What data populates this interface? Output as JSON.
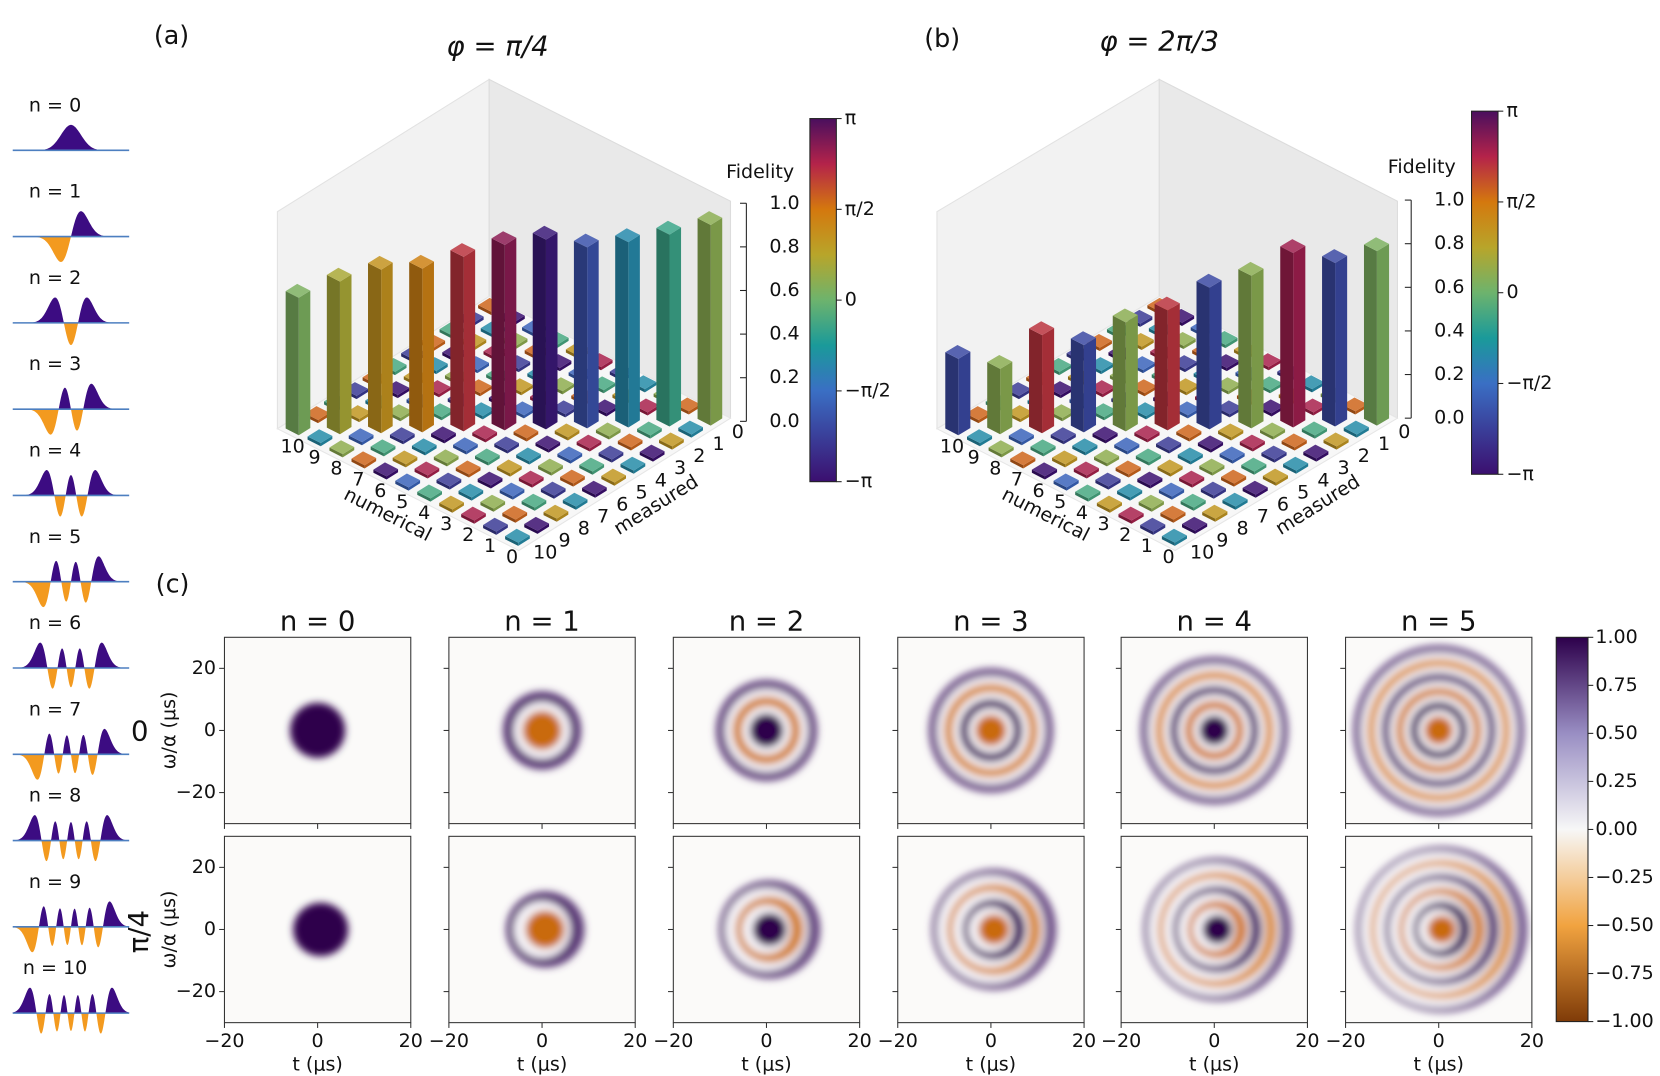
{
  "left_column": {
    "labels": [
      "n = 0",
      "n = 1",
      "n = 2",
      "n = 3",
      "n = 4",
      "n = 5",
      "n = 6",
      "n = 7",
      "n = 8",
      "n = 9",
      "n = 10"
    ]
  },
  "panel_a": {
    "label": "(a)",
    "title": "φ = π/4",
    "zlabel": "Fidelity",
    "xlabel": "numerical",
    "ylabel": "measured",
    "numerical_ticks": [
      0,
      1,
      2,
      3,
      4,
      5,
      6,
      7,
      8,
      9,
      10
    ],
    "measured_ticks": [
      0,
      1,
      2,
      3,
      4,
      5,
      6,
      7,
      8,
      9,
      10
    ],
    "zlim": [
      0,
      1
    ],
    "zticks": [
      {
        "value": 0,
        "label": "0.0"
      },
      0.2,
      0.4,
      0.6,
      0.8,
      {
        "value": 1,
        "label": "1.0"
      }
    ],
    "fidelity": [
      0.92,
      0.88,
      0.85,
      0.83,
      0.87,
      0.85,
      0.8,
      0.75,
      0.75,
      0.7,
      0.63
    ],
    "phase": [
      0.1,
      -0.15,
      -0.35,
      -0.65,
      -0.95,
      0.85,
      0.7,
      0.45,
      0.35,
      0.2,
      0.05
    ],
    "colorbar_lim": [
      -1,
      1
    ],
    "colorbar_ticks": [
      {
        "value": 1,
        "label": "π"
      },
      {
        "value": 0.5,
        "label": "π/2"
      },
      0,
      {
        "value": -0.5,
        "label": "−π/2"
      },
      {
        "value": -1,
        "label": "−π"
      }
    ]
  },
  "panel_b": {
    "label": "(b)",
    "title": "φ = 2π/3",
    "zlabel": "Fidelity",
    "xlabel": "numerical",
    "ylabel": "measured",
    "numerical_ticks": [
      0,
      1,
      2,
      3,
      4,
      5,
      6,
      7,
      8,
      9,
      10
    ],
    "measured_ticks": [
      0,
      1,
      2,
      3,
      4,
      5,
      6,
      7,
      8,
      9,
      10
    ],
    "zlim": [
      0,
      1
    ],
    "zticks": [
      {
        "value": 0,
        "label": "0.0"
      },
      0.2,
      0.4,
      0.6,
      0.8,
      {
        "value": 1,
        "label": "1.0"
      }
    ],
    "fidelity": [
      0.8,
      0.75,
      0.8,
      0.7,
      0.65,
      0.55,
      0.5,
      0.4,
      0.45,
      0.3,
      0.35
    ],
    "phase": [
      0.05,
      -0.7,
      0.8,
      0.1,
      -0.7,
      0.7,
      0.1,
      -0.7,
      0.7,
      0.1,
      -0.7
    ],
    "colorbar_lim": [
      -1,
      1
    ],
    "colorbar_ticks": [
      {
        "value": 1,
        "label": "π"
      },
      {
        "value": 0.5,
        "label": "π/2"
      },
      0,
      {
        "value": -0.5,
        "label": "−π/2"
      },
      {
        "value": -1,
        "label": "−π"
      }
    ]
  },
  "panel_c": {
    "label": "(c)",
    "columns": [
      "n = 0",
      "n = 1",
      "n = 2",
      "n = 3",
      "n = 4",
      "n = 5"
    ],
    "rows": [
      "0",
      "π/4"
    ],
    "xlabel": "t (μs)",
    "ylabel": "ω/α (μs)",
    "xlim": [
      -20,
      20
    ],
    "xticks": [
      {
        "value": -20,
        "label": "−20"
      },
      0,
      20
    ],
    "ylim": [
      -30,
      30
    ],
    "yticks": [
      20,
      0,
      {
        "value": -20,
        "label": "−20"
      }
    ],
    "colorbar_lim": [
      -1,
      1
    ],
    "colorbar_ticks": [
      {
        "value": 1,
        "label": "1.00"
      },
      {
        "value": 0.75,
        "label": "0.75"
      },
      {
        "value": 0.5,
        "label": "0.50"
      },
      {
        "value": 0.25,
        "label": "0.25"
      },
      {
        "value": 0,
        "label": "0.00"
      },
      {
        "value": -0.25,
        "label": "−0.25"
      },
      {
        "value": -0.5,
        "label": "−0.50"
      },
      {
        "value": -0.75,
        "label": "−0.75"
      },
      {
        "value": -1,
        "label": "−1.00"
      }
    ]
  }
}
